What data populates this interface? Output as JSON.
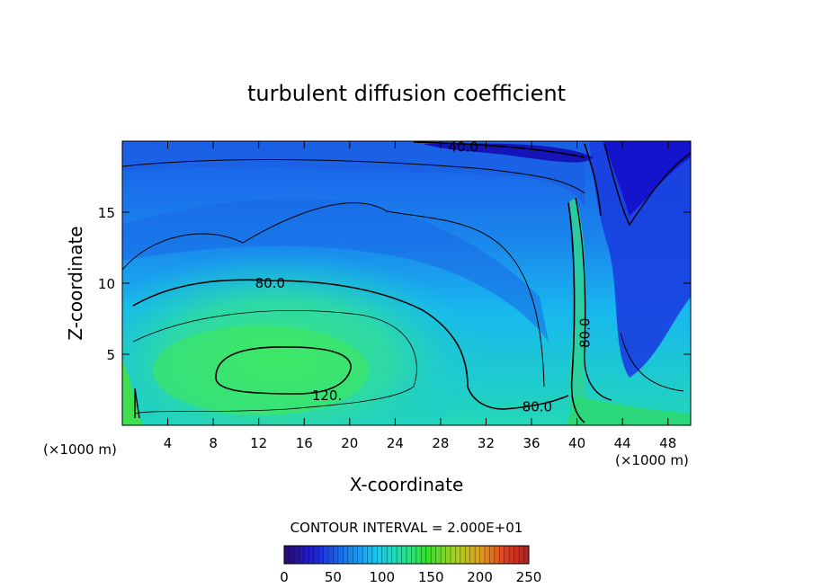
{
  "chart_data": {
    "type": "heatmap",
    "title": "turbulent diffusion coefficient",
    "xlabel": "X-coordinate",
    "ylabel": "Z-coordinate",
    "x_unit_left": "(×1000 m)",
    "x_unit_right": "(×1000 m)",
    "xlim": [
      0,
      50
    ],
    "ylim": [
      0,
      20
    ],
    "x_ticks": [
      4,
      8,
      12,
      16,
      20,
      24,
      28,
      32,
      36,
      40,
      44,
      48
    ],
    "y_ticks": [
      5,
      10,
      15
    ],
    "contour_interval_label": "CONTOUR INTERVAL = 2.000E+01",
    "contour_labels": [
      {
        "text": "40.0",
        "x": 30,
        "y": 19.6
      },
      {
        "text": "80.0",
        "x": 13,
        "y": 10.0
      },
      {
        "text": "120.",
        "x": 18,
        "y": 2.1
      },
      {
        "text": "80.0",
        "x": 36.5,
        "y": 1.3
      },
      {
        "text": "80.0",
        "x": 40.7,
        "y": 6.5
      }
    ],
    "colorbar": {
      "min": 0,
      "max": 250,
      "tick_values": [
        0,
        50,
        100,
        150,
        200,
        250
      ],
      "tick_labels": [
        "0",
        "50",
        "100",
        "150",
        "200",
        "250"
      ],
      "colors": [
        "#2a0a6a",
        "#1f1fd8",
        "#1a7af0",
        "#18c8f0",
        "#22e0a0",
        "#30e030",
        "#a8d020",
        "#e0a020",
        "#e04020",
        "#b02020"
      ]
    },
    "grid": false
  }
}
